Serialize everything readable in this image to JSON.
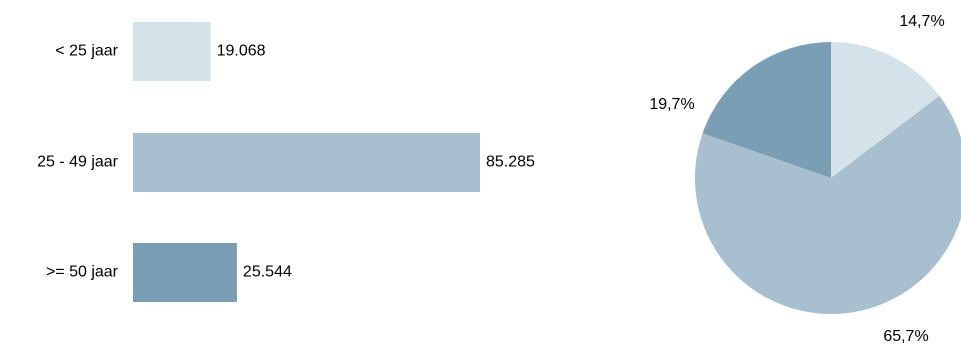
{
  "chart_data": [
    {
      "type": "bar",
      "orientation": "horizontal",
      "categories": [
        "< 25 jaar",
        "25 - 49 jaar",
        ">= 50 jaar"
      ],
      "values": [
        19068,
        85285,
        25544
      ],
      "value_labels": [
        "19.068",
        "85.285",
        "25.544"
      ],
      "colors": [
        "#d3e3e9",
        "#a7bfce",
        "#7a9fb5"
      ],
      "xlim": [
        0,
        85285
      ],
      "grid": false,
      "legend": "none"
    },
    {
      "type": "pie",
      "categories": [
        "< 25 jaar",
        "25 - 49 jaar",
        ">= 50 jaar"
      ],
      "values": [
        14.7,
        65.7,
        19.7
      ],
      "value_labels": [
        "14,7%",
        "65,7%",
        "19,7%"
      ],
      "colors": [
        "#d3e3e9",
        "#a7bfce",
        "#7a9fb5"
      ],
      "start_angle": "top",
      "direction": "clockwise",
      "legend": "none"
    }
  ]
}
